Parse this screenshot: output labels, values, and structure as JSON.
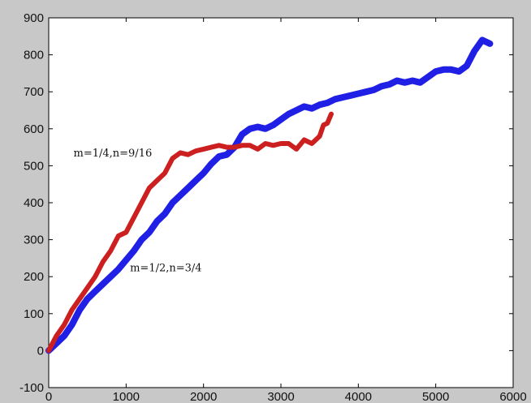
{
  "chart_data": {
    "type": "line",
    "xlim": [
      0,
      6000
    ],
    "ylim": [
      -100,
      900
    ],
    "x_ticks": [
      0,
      1000,
      2000,
      3000,
      4000,
      5000,
      6000
    ],
    "y_ticks": [
      -100,
      0,
      100,
      200,
      300,
      400,
      500,
      600,
      700,
      800,
      900
    ],
    "grid": false,
    "annotations": [
      {
        "text": "m=1/4,n=9/16",
        "x": 320,
        "y": 525
      },
      {
        "text": "m=1/2,n=3/4",
        "x": 1050,
        "y": 215
      }
    ],
    "series": [
      {
        "color": "#cc1f1f",
        "x": [
          0,
          100,
          200,
          300,
          400,
          500,
          600,
          700,
          800,
          900,
          1000,
          1100,
          1200,
          1300,
          1400,
          1500,
          1600,
          1700,
          1800,
          1900,
          2000,
          2100,
          2200,
          2300,
          2400,
          2500,
          2600,
          2700,
          2800,
          2900,
          3000,
          3100,
          3200,
          3300,
          3400,
          3500,
          3550,
          3600,
          3650
        ],
        "y": [
          0,
          40,
          70,
          110,
          140,
          170,
          200,
          240,
          270,
          310,
          320,
          360,
          400,
          440,
          460,
          480,
          520,
          535,
          530,
          540,
          545,
          550,
          555,
          550,
          550,
          555,
          555,
          545,
          560,
          555,
          560,
          560,
          545,
          570,
          560,
          580,
          610,
          615,
          640
        ]
      },
      {
        "color": "#1f1fe6",
        "x": [
          0,
          100,
          200,
          300,
          400,
          500,
          600,
          700,
          800,
          900,
          1000,
          1100,
          1200,
          1300,
          1400,
          1500,
          1600,
          1700,
          1800,
          1900,
          2000,
          2100,
          2200,
          2300,
          2400,
          2500,
          2600,
          2700,
          2800,
          2900,
          3000,
          3100,
          3200,
          3300,
          3400,
          3500,
          3600,
          3700,
          3800,
          3900,
          4000,
          4100,
          4200,
          4300,
          4400,
          4500,
          4600,
          4700,
          4800,
          4900,
          5000,
          5100,
          5200,
          5300,
          5400,
          5500,
          5600,
          5700
        ],
        "y": [
          0,
          20,
          40,
          70,
          110,
          140,
          160,
          180,
          200,
          220,
          245,
          270,
          300,
          320,
          350,
          370,
          400,
          420,
          440,
          460,
          480,
          505,
          525,
          530,
          550,
          585,
          600,
          605,
          600,
          610,
          625,
          640,
          650,
          660,
          655,
          665,
          670,
          680,
          685,
          690,
          695,
          700,
          705,
          715,
          720,
          730,
          725,
          730,
          725,
          740,
          755,
          760,
          760,
          755,
          770,
          810,
          840,
          830
        ]
      }
    ]
  }
}
